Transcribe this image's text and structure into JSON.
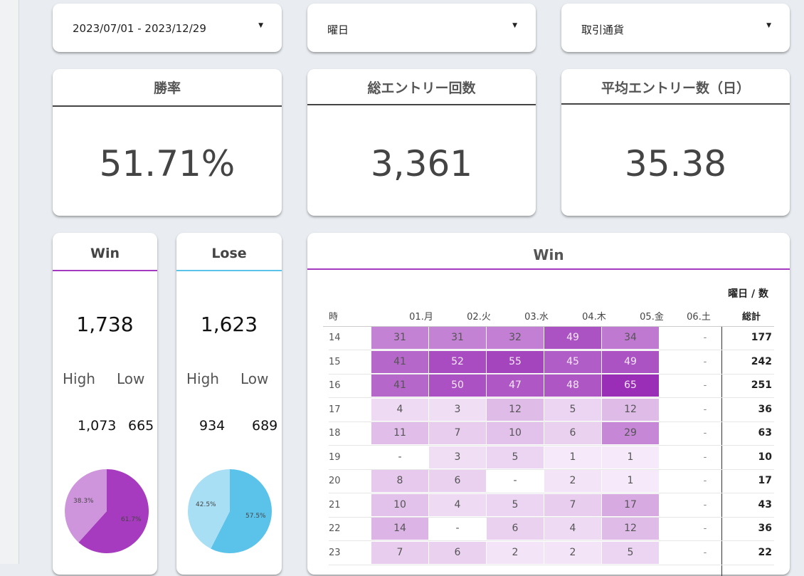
{
  "filters": {
    "date_range": "2023/07/01 - 2023/12/29",
    "weekday": "曜日",
    "currency": "取引通貨"
  },
  "kpis": {
    "win_rate": {
      "title": "勝率",
      "value": "51.71%"
    },
    "total_entries": {
      "title": "総エントリー回数",
      "value": "3,361"
    },
    "avg_entries": {
      "title": "平均エントリー数（日）",
      "value": "35.38"
    }
  },
  "win_card": {
    "title": "Win",
    "total": "1,738",
    "high_label": "High",
    "low_label": "Low",
    "high_value": "1,073",
    "low_value": "665",
    "pie": {
      "high_pct": 61.7,
      "low_pct": 38.3,
      "high_label": "61.7%",
      "low_label": "38.3%",
      "high_color": "#a63bbf",
      "low_color": "#cf95dc"
    }
  },
  "lose_card": {
    "title": "Lose",
    "total": "1,623",
    "high_label": "High",
    "low_label": "Low",
    "high_value": "934",
    "low_value": "689",
    "pie": {
      "high_pct": 57.5,
      "low_pct": 42.5,
      "high_label": "57.5%",
      "low_label": "42.5%",
      "high_color": "#5bc2ea",
      "low_color": "#a9dff4"
    }
  },
  "heatmap": {
    "title": "Win",
    "dimension_label": "曜日 / 数",
    "row_header": "時",
    "columns": [
      "01.月",
      "02.火",
      "03.水",
      "04.木",
      "05.金",
      "06.土"
    ],
    "total_header": "総計",
    "accent_color": "#a53ac0",
    "rows": [
      {
        "hour": "14",
        "values": [
          "31",
          "31",
          "32",
          "49",
          "34"
        ],
        "sat": "-",
        "total": "177"
      },
      {
        "hour": "15",
        "values": [
          "41",
          "52",
          "55",
          "45",
          "49"
        ],
        "sat": "-",
        "total": "242"
      },
      {
        "hour": "16",
        "values": [
          "41",
          "50",
          "47",
          "48",
          "65"
        ],
        "sat": "-",
        "total": "251"
      },
      {
        "hour": "17",
        "values": [
          "4",
          "3",
          "12",
          "5",
          "12"
        ],
        "sat": "-",
        "total": "36"
      },
      {
        "hour": "18",
        "values": [
          "11",
          "7",
          "10",
          "6",
          "29"
        ],
        "sat": "-",
        "total": "63"
      },
      {
        "hour": "19",
        "values": [
          "-",
          "3",
          "5",
          "1",
          "1"
        ],
        "sat": "-",
        "total": "10"
      },
      {
        "hour": "20",
        "values": [
          "8",
          "6",
          "-",
          "2",
          "1"
        ],
        "sat": "-",
        "total": "17"
      },
      {
        "hour": "21",
        "values": [
          "10",
          "4",
          "5",
          "7",
          "17"
        ],
        "sat": "-",
        "total": "43"
      },
      {
        "hour": "22",
        "values": [
          "14",
          "-",
          "6",
          "4",
          "12"
        ],
        "sat": "-",
        "total": "36"
      },
      {
        "hour": "23",
        "values": [
          "7",
          "6",
          "2",
          "2",
          "5"
        ],
        "sat": "-",
        "total": "22"
      }
    ]
  }
}
